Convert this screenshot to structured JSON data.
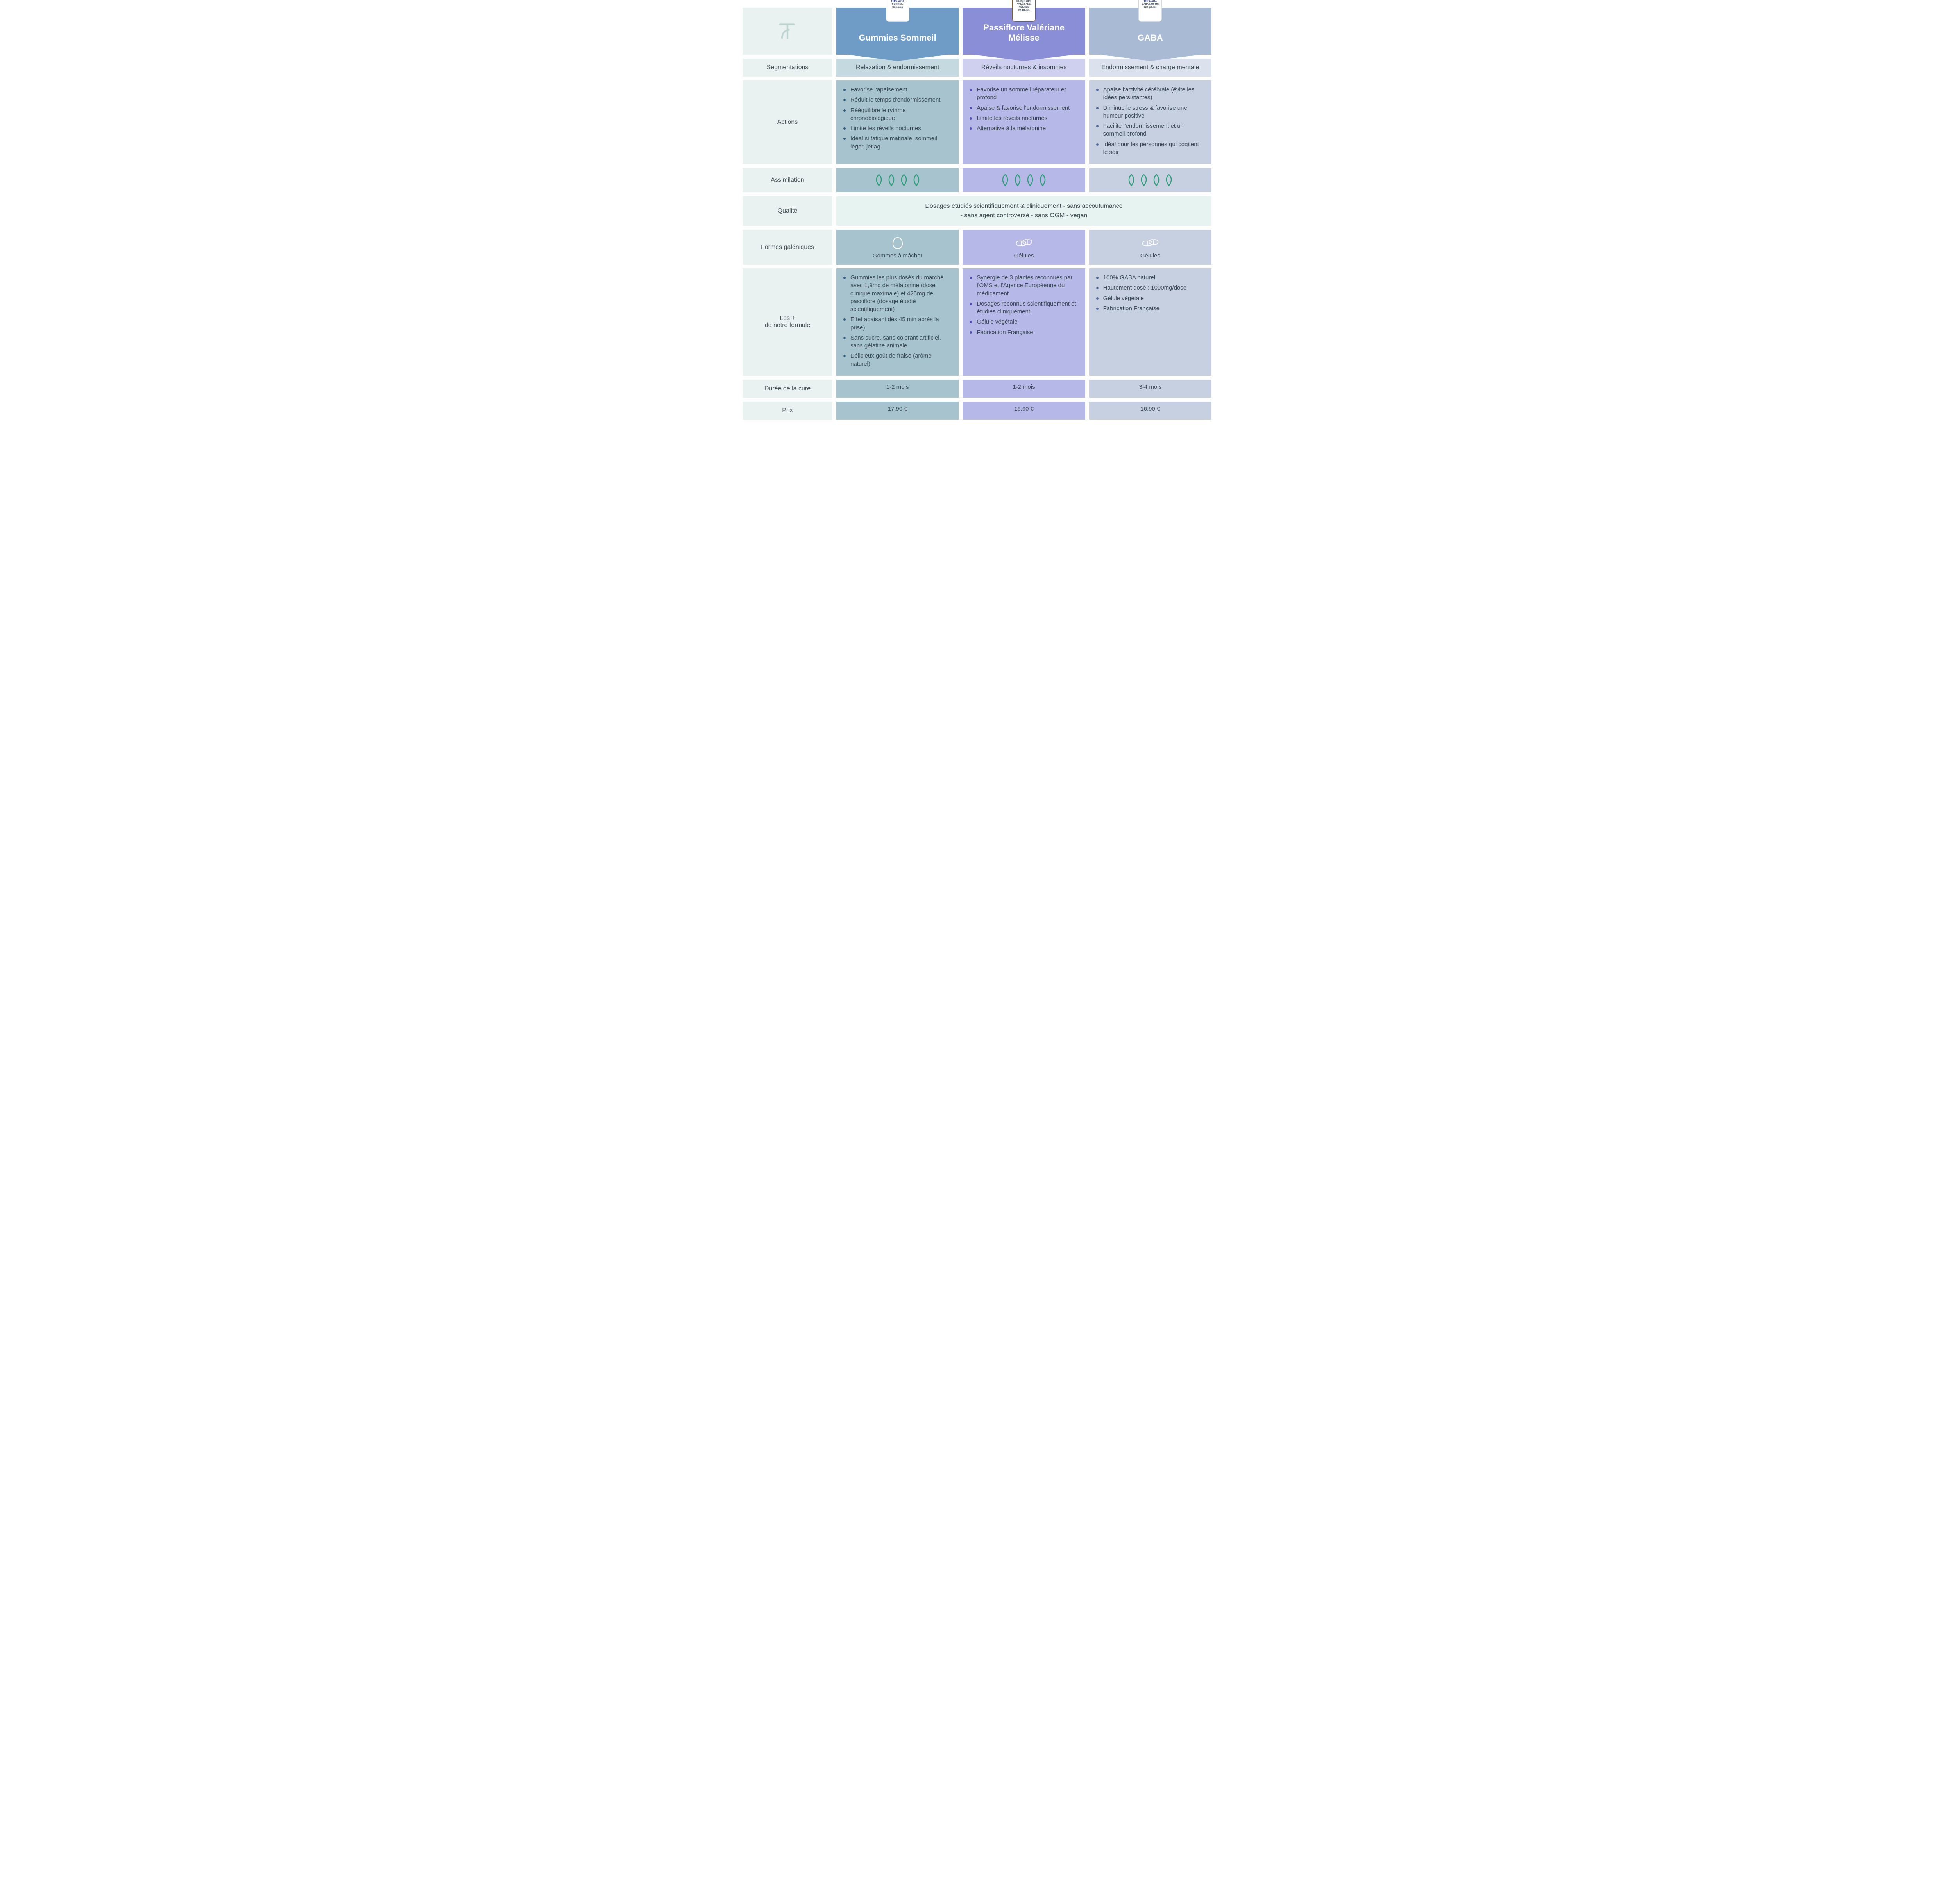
{
  "brand": "TERRAVITA",
  "rows": {
    "segmentation": "Segmentations",
    "actions": "Actions",
    "assimilation": "Assimilation",
    "quality": "Qualité",
    "form": "Formes galéniques",
    "plus_line1": "Les +",
    "plus_line2": "de notre formule",
    "duration": "Durée de la cure",
    "price": "Prix"
  },
  "quality_text_line1": "Dosages étudiés scientifiquement & cliniquement - sans accoutumance",
  "quality_text_line2": "- sans agent controversé - sans OGM - vegan",
  "products": [
    {
      "key": "gummies",
      "title": "Gummies Sommeil",
      "header_color": "#6f9bc7",
      "body_color": "#a7c4ce",
      "seg_color": "#c5d9e0",
      "bullet_color": "#2c5e84",
      "bottle_label": "SOMMEIL",
      "bottle_sub": "Gummies",
      "bottle_style": "white",
      "segmentation": "Relaxation & endormissement",
      "actions": [
        "Favorise l'apaisement",
        "Réduit le temps d'endormissement",
        "Rééquilibre le rythme chronobiologique",
        "Limite les réveils nocturnes",
        "Idéal si fatigue matinale, sommeil léger, jetlag"
      ],
      "assimilation": 4,
      "form_icon": "gummy",
      "form_label": "Gommes à mâcher",
      "plus": [
        "Gummies les plus dosés du marché avec 1,9mg de mélatonine (dose clinique maximale) et 425mg de passiflore (dosage étudié scientifiquement)",
        "Effet apaisant dès 45 min après la prise)",
        "Sans sucre, sans colorant artificiel, sans gélatine animale",
        "Délicieux goût de fraise (arôme naturel)"
      ],
      "duration": "1-2 mois",
      "price": "17,90 €"
    },
    {
      "key": "pvm",
      "title": "Passiflore Valériane Mélisse",
      "header_color": "#8a8ed6",
      "body_color": "#b6b8e8",
      "seg_color": "#cfd0f0",
      "bullet_color": "#4e52b8",
      "bottle_label": "PASSIFLORE VALÉRIANE MÉLISSE",
      "bottle_sub": "90 gélules",
      "bottle_style": "amber",
      "segmentation": "Réveils nocturnes & insomnies",
      "actions": [
        "Favorise un sommeil réparateur et profond",
        "Apaise & favorise l'endormissement",
        "Limite les réveils nocturnes",
        "Alternative à la mélatonine"
      ],
      "assimilation": 4,
      "form_icon": "capsule",
      "form_label": "Gélules",
      "plus": [
        "Synergie de 3 plantes reconnues par l'OMS et l'Agence Européenne du médicament",
        "Dosages reconnus scientifiquement et étudiés cliniquement",
        "Gélule végétale",
        "Fabrication Française"
      ],
      "duration": "1-2 mois",
      "price": "16,90 €"
    },
    {
      "key": "gaba",
      "title": "GABA",
      "header_color": "#a9bbd4",
      "body_color": "#c6d0e1",
      "seg_color": "#dbe2ed",
      "bullet_color": "#4e6a96",
      "bottle_label": "GABA 1000 MG",
      "bottle_sub": "120 gélules",
      "bottle_style": "dark",
      "segmentation": "Endormissement & charge mentale",
      "actions": [
        "Apaise l'activité cérébrale (évite les idées persistantes)",
        "Diminue le stress & favorise une humeur positive",
        "Facilite l'endormissement et un sommeil profond",
        "Idéal pour les personnes qui cogitent le soir"
      ],
      "assimilation": 4,
      "form_icon": "capsule",
      "form_label": "Gélules",
      "plus": [
        "100% GABA naturel",
        "Hautement dosé : 1000mg/dose",
        "Gélule végétale",
        "Fabrication Française"
      ],
      "duration": "3-4 mois",
      "price": "16,90 €"
    }
  ],
  "leaf_color": "#2f9d7a"
}
